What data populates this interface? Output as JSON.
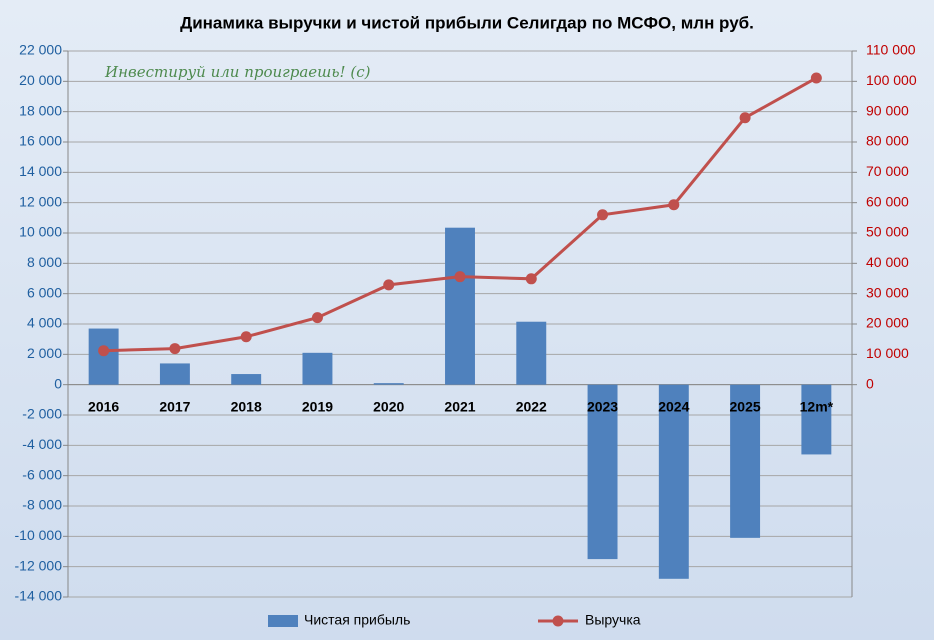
{
  "chart_data": {
    "type": "bar_line",
    "title": "Динамика выручки и чистой прибыли Селигдар по МСФО, млн руб.",
    "annotation": "Инвестируй или проиграешь! (с)",
    "categories": [
      "2016",
      "2017",
      "2018",
      "2019",
      "2020",
      "2021",
      "2022",
      "2023",
      "2024",
      "2025",
      "12m*"
    ],
    "series": [
      {
        "name": "Чистая прибыль",
        "type": "bar",
        "color": "#4f81bd",
        "values": [
          3700,
          1400,
          700,
          2100,
          100,
          10350,
          4150,
          -11500,
          -12800,
          -10100,
          -4600
        ]
      },
      {
        "name": "Выручка",
        "type": "line",
        "axis": "y2",
        "color": "#c0504d",
        "values": [
          11200,
          11900,
          15800,
          22100,
          32900,
          35600,
          34900,
          56000,
          59300,
          88000,
          101100
        ]
      }
    ],
    "ylim": [
      -14000,
      22000
    ],
    "yticks": [
      {
        "value": -14000,
        "label": "-14 000"
      },
      {
        "value": -12000,
        "label": "-12 000"
      },
      {
        "value": -10000,
        "label": "-10 000"
      },
      {
        "value": -8000,
        "label": "-8 000"
      },
      {
        "value": -6000,
        "label": "-6 000"
      },
      {
        "value": -4000,
        "label": "-4 000"
      },
      {
        "value": -2000,
        "label": "-2 000"
      },
      0,
      {
        "value": 2000,
        "label": "2 000"
      },
      {
        "value": 4000,
        "label": "4 000"
      },
      {
        "value": 6000,
        "label": "6 000"
      },
      {
        "value": 8000,
        "label": "8 000"
      },
      {
        "value": 10000,
        "label": "10 000"
      },
      {
        "value": 12000,
        "label": "12 000"
      },
      {
        "value": 14000,
        "label": "14 000"
      },
      {
        "value": 16000,
        "label": "16 000"
      },
      {
        "value": 18000,
        "label": "18 000"
      },
      {
        "value": 20000,
        "label": "20 000"
      },
      {
        "value": 22000,
        "label": "22 000"
      }
    ],
    "y2lim": [
      -70000,
      110000
    ],
    "y2ticks": [
      0,
      {
        "value": 10000,
        "label": "10 000"
      },
      {
        "value": 20000,
        "label": "20 000"
      },
      {
        "value": 30000,
        "label": "30 000"
      },
      {
        "value": 40000,
        "label": "40 000"
      },
      {
        "value": 50000,
        "label": "50 000"
      },
      {
        "value": 60000,
        "label": "60 000"
      },
      {
        "value": 70000,
        "label": "70 000"
      },
      {
        "value": 80000,
        "label": "80 000"
      },
      {
        "value": 90000,
        "label": "90 000"
      },
      {
        "value": 100000,
        "label": "100 000"
      },
      {
        "value": 110000,
        "label": "110 000"
      }
    ],
    "grid": true
  }
}
